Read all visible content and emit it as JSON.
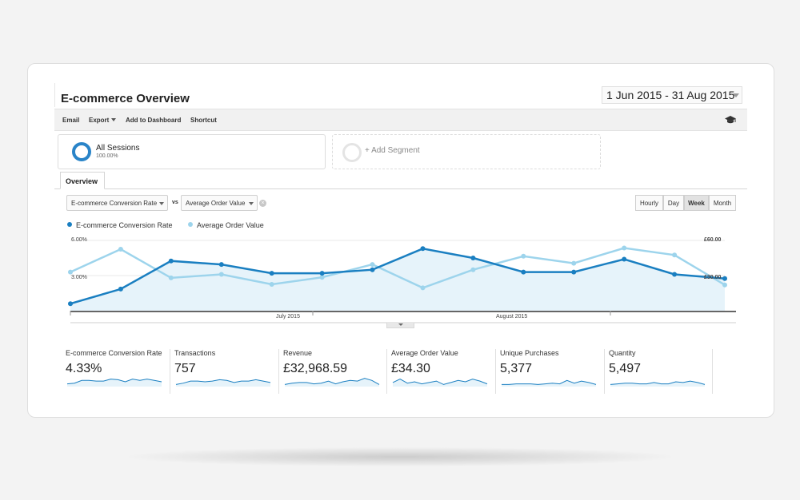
{
  "header": {
    "title": "E-commerce Overview",
    "date_range": "1 Jun 2015 - 31 Aug 2015"
  },
  "toolbar": {
    "email": "Email",
    "export": "Export",
    "add_to_dashboard": "Add to Dashboard",
    "shortcut": "Shortcut",
    "icon": "graduation-cap-icon"
  },
  "segments": {
    "all_sessions": {
      "name": "All Sessions",
      "percent": "100.00%"
    },
    "add_segment": "+ Add Segment"
  },
  "tabs": {
    "overview": "Overview"
  },
  "controls": {
    "metric1": "E-commerce Conversion Rate",
    "vs": "vs",
    "metric2": "Average Order Value",
    "periods": [
      "Hourly",
      "Day",
      "Week",
      "Month"
    ],
    "active_period": "Week"
  },
  "colors": {
    "primary_series": "#1a7fc1",
    "secondary_series": "#9dd4ec",
    "area_fill": "#e6f3fa"
  },
  "chart_data": {
    "type": "line",
    "legend": [
      "E-commerce Conversion Rate",
      "Average Order Value"
    ],
    "left_axis": {
      "ticks": [
        "6.00%",
        "3.00%"
      ],
      "range": [
        0,
        6
      ]
    },
    "right_axis": {
      "ticks": [
        "£60.00",
        "£30.00"
      ],
      "range": [
        0,
        60
      ]
    },
    "x_labels": [
      "July 2015",
      "August 2015"
    ],
    "series": [
      {
        "name": "E-commerce Conversion Rate",
        "unit": "%",
        "values": [
          0.6,
          1.85,
          4.25,
          3.95,
          3.2,
          3.2,
          3.5,
          5.3,
          4.5,
          3.3,
          3.3,
          4.4,
          3.1,
          2.75
        ]
      },
      {
        "name": "Average Order Value",
        "unit": "£",
        "values": [
          33.0,
          52.5,
          28.0,
          31.0,
          22.5,
          28.5,
          39.5,
          19.5,
          35.0,
          46.5,
          40.5,
          53.5,
          47.5,
          22.0
        ]
      }
    ]
  },
  "metrics": [
    {
      "label": "E-commerce Conversion Rate",
      "value": "4.33%",
      "spark": [
        4,
        5,
        9,
        9,
        8,
        8,
        11,
        10,
        7,
        11,
        9,
        11,
        9,
        7
      ]
    },
    {
      "label": "Transactions",
      "value": "757",
      "spark": [
        3,
        5,
        8,
        8,
        7,
        8,
        10,
        9,
        6,
        8,
        8,
        10,
        8,
        6
      ]
    },
    {
      "label": "Revenue",
      "value": "£32,968.59",
      "spark": [
        3,
        5,
        6,
        6,
        4,
        5,
        8,
        4,
        7,
        9,
        8,
        12,
        9,
        3
      ]
    },
    {
      "label": "Average Order Value",
      "value": "£34.30",
      "spark": [
        6,
        11,
        5,
        7,
        4,
        6,
        8,
        3,
        6,
        9,
        7,
        11,
        8,
        4
      ]
    },
    {
      "label": "Unique Purchases",
      "value": "5,377",
      "spark": [
        3,
        3,
        4,
        4,
        4,
        3,
        4,
        5,
        4,
        9,
        5,
        8,
        6,
        3
      ]
    },
    {
      "label": "Quantity",
      "value": "5,497",
      "spark": [
        3,
        4,
        5,
        5,
        4,
        4,
        6,
        4,
        4,
        7,
        6,
        8,
        6,
        3
      ]
    }
  ]
}
